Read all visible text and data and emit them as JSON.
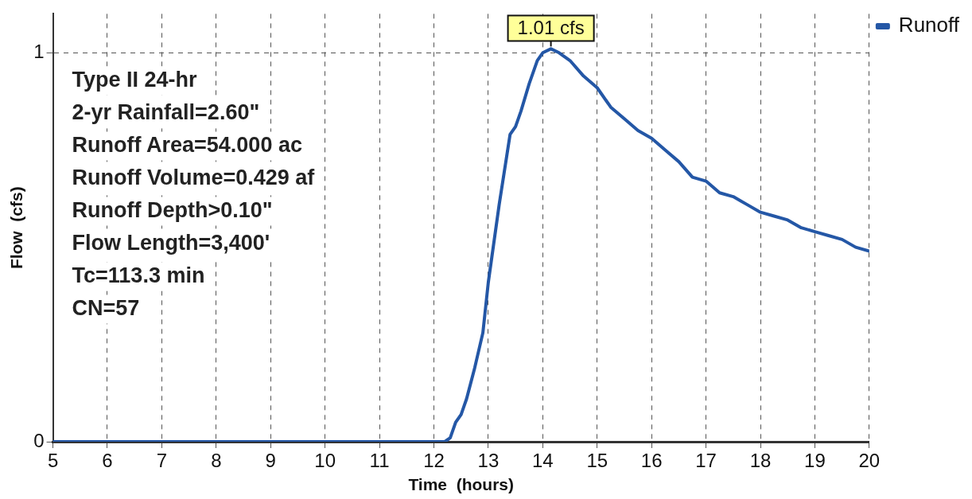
{
  "chart_data": {
    "type": "line",
    "xlabel": "Time  (hours)",
    "ylabel": "Flow  (cfs)",
    "x": [
      5,
      12,
      12.2,
      12.3,
      12.4,
      12.5,
      12.6,
      12.75,
      12.9,
      13,
      13.2,
      13.4,
      13.5,
      13.6,
      13.75,
      13.9,
      14,
      14.15,
      14.3,
      14.5,
      14.75,
      15,
      15.25,
      15.5,
      15.75,
      16,
      16.25,
      16.5,
      16.75,
      17,
      17.25,
      17.5,
      17.75,
      18,
      18.25,
      18.5,
      18.75,
      19,
      19.25,
      19.5,
      19.75,
      20
    ],
    "series": [
      {
        "name": "Runoff",
        "color": "#2457a6",
        "values": [
          0,
          0,
          0,
          0.01,
          0.05,
          0.07,
          0.11,
          0.19,
          0.28,
          0.41,
          0.61,
          0.79,
          0.81,
          0.85,
          0.92,
          0.98,
          1.0,
          1.01,
          1.0,
          0.98,
          0.94,
          0.91,
          0.86,
          0.83,
          0.8,
          0.78,
          0.75,
          0.72,
          0.68,
          0.67,
          0.64,
          0.63,
          0.61,
          0.59,
          0.58,
          0.57,
          0.55,
          0.54,
          0.53,
          0.52,
          0.5,
          0.49
        ]
      }
    ],
    "xlim": [
      5,
      20
    ],
    "xticks": [
      5,
      6,
      7,
      8,
      9,
      10,
      11,
      12,
      13,
      14,
      15,
      16,
      17,
      18,
      19,
      20
    ],
    "ylim": [
      0,
      1.1
    ],
    "yticks": [
      0,
      1
    ],
    "grid": true,
    "legend": "top right",
    "marker": "none",
    "line_style": "solid",
    "annotations": [
      {
        "text": "1.01 cfs",
        "x": 14.15,
        "y": 1.01
      },
      "Type II 24-hr",
      "2-yr Rainfall=2.60\"",
      "Runoff Area=54.000 ac",
      "Runoff Volume=0.429 af",
      "Runoff Depth>0.10\"",
      "Flow Length=3,400'",
      "Tc=113.3 min",
      "CN=57"
    ]
  }
}
